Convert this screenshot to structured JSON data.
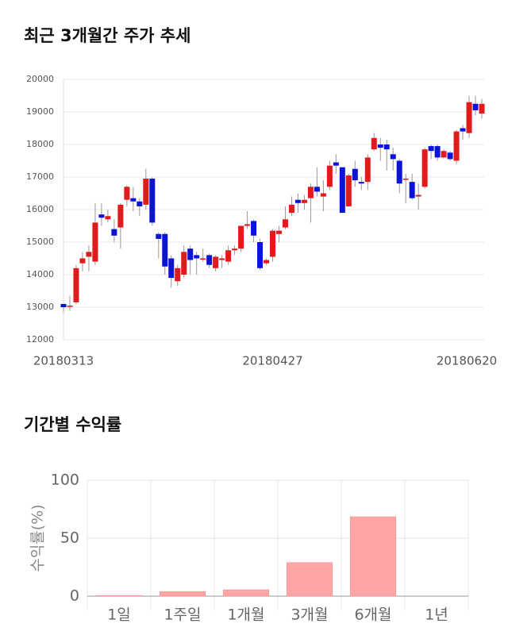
{
  "chart_data": [
    {
      "type": "candlestick",
      "title": "최근 3개월간 주가 추세",
      "categories": [
        "20180313",
        null,
        null,
        null,
        null,
        null,
        null,
        null,
        null,
        null,
        null,
        null,
        null,
        null,
        null,
        null,
        null,
        null,
        null,
        null,
        null,
        null,
        null,
        null,
        null,
        null,
        null,
        null,
        null,
        null,
        null,
        null,
        null,
        "20180427",
        null,
        null,
        null,
        null,
        null,
        null,
        null,
        null,
        null,
        null,
        null,
        null,
        null,
        null,
        null,
        null,
        null,
        null,
        null,
        null,
        null,
        null,
        null,
        null,
        null,
        null,
        null,
        null,
        null,
        null,
        null,
        null,
        "20180620"
      ],
      "open": [
        13100,
        13050,
        13150,
        14350,
        14550,
        14400,
        15850,
        15700,
        15400,
        15450,
        16300,
        16350,
        16250,
        16150,
        16950,
        15250,
        15250,
        14500,
        13800,
        14000,
        14800,
        14600,
        14500,
        14600,
        14200,
        14450,
        14400,
        14750,
        14800,
        15500,
        15650,
        15000,
        14350,
        14550,
        15250,
        15450,
        15900,
        16300,
        16200,
        16350,
        16700,
        16400,
        16700,
        17450,
        17300,
        16100,
        17250,
        16850,
        16850,
        17850,
        18000,
        18000,
        17700,
        17500,
        16950,
        16850,
        16400,
        16700,
        17950,
        17950,
        17600,
        17750,
        17500,
        18500,
        18350,
        19250,
        18950
      ],
      "high": [
        13100,
        13350,
        14300,
        14700,
        14900,
        16200,
        16200,
        16000,
        15700,
        16200,
        16750,
        16700,
        16350,
        17250,
        17000,
        15300,
        15300,
        14600,
        14300,
        14900,
        14900,
        14700,
        14800,
        14650,
        14600,
        14600,
        14900,
        14900,
        15500,
        15950,
        15700,
        15100,
        14500,
        15400,
        15500,
        16100,
        16400,
        16500,
        16450,
        16800,
        17300,
        16900,
        17500,
        17700,
        17300,
        17100,
        17500,
        17000,
        17700,
        18350,
        18200,
        18150,
        17900,
        17550,
        17100,
        17100,
        16800,
        17900,
        18000,
        18000,
        17850,
        17800,
        18450,
        18600,
        19500,
        19500,
        19400
      ],
      "low": [
        12850,
        12900,
        13100,
        14100,
        14100,
        14300,
        15500,
        15600,
        15000,
        14800,
        16100,
        15950,
        15800,
        16000,
        15500,
        14500,
        14000,
        13600,
        13650,
        13900,
        14000,
        14000,
        14400,
        14200,
        14100,
        14200,
        14300,
        14600,
        14700,
        15400,
        15000,
        14150,
        14300,
        14400,
        15000,
        15400,
        15800,
        15900,
        16000,
        15600,
        16400,
        15950,
        16600,
        17100,
        15900,
        16100,
        16700,
        16600,
        16600,
        17800,
        17500,
        17200,
        17200,
        16500,
        16200,
        16300,
        16000,
        16650,
        17550,
        17500,
        17600,
        17500,
        17400,
        18150,
        18200,
        18900,
        18800
      ],
      "close": [
        13000,
        13050,
        14200,
        14500,
        14700,
        15600,
        15750,
        15800,
        15200,
        16150,
        16700,
        16250,
        16100,
        16950,
        15600,
        15100,
        14250,
        13900,
        14200,
        14700,
        14450,
        14500,
        14500,
        14300,
        14550,
        14500,
        14750,
        14800,
        15500,
        15550,
        15200,
        14200,
        14450,
        15350,
        15350,
        15700,
        16150,
        16200,
        16300,
        16700,
        16550,
        16500,
        17350,
        17350,
        15900,
        17050,
        16900,
        16800,
        17600,
        18200,
        17900,
        17850,
        17550,
        16800,
        16950,
        16350,
        16450,
        17850,
        17800,
        17600,
        17800,
        17550,
        18400,
        18400,
        19300,
        19050,
        19250
      ],
      "up_color": "#e31a1c",
      "down_color": "#0b14d6",
      "ylim": [
        12000,
        20000
      ],
      "yticks": [
        12000,
        13000,
        14000,
        15000,
        16000,
        17000,
        18000,
        19000,
        20000
      ],
      "grid": true
    },
    {
      "type": "bar",
      "title": "기간별 수익률",
      "ylabel": "수익률(%)",
      "categories": [
        "1일",
        "1주일",
        "1개월",
        "3개월",
        "6개월",
        "1년"
      ],
      "values": [
        0.6,
        4,
        5.5,
        29,
        68.5,
        null
      ],
      "color": "#ffa5a5",
      "ylim": [
        0,
        100
      ],
      "yticks": [
        0,
        50,
        100
      ],
      "grid": true
    }
  ]
}
